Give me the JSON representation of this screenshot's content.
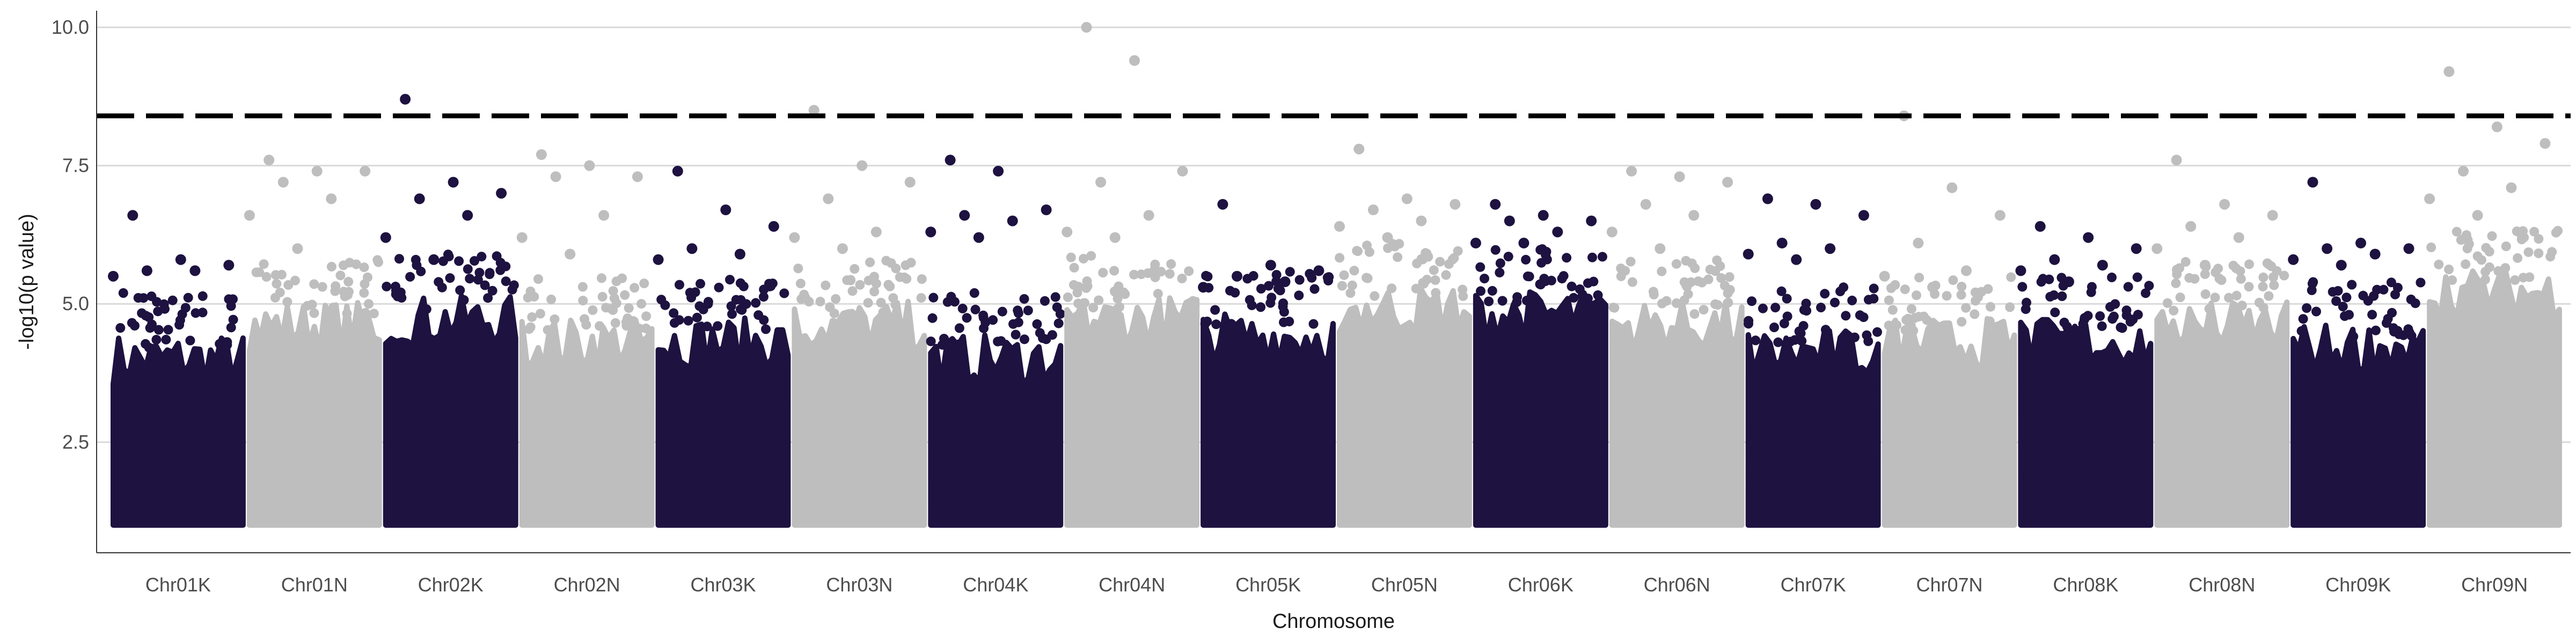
{
  "chart_data": {
    "type": "scatter",
    "title": "",
    "xlabel": "Chromosome",
    "ylabel": "-log10(p value)",
    "ylim": [
      0.5,
      10.3
    ],
    "yticks": [
      2.5,
      5.0,
      7.5,
      10.0
    ],
    "ytick_labels": [
      "2.5",
      "5.0",
      "7.5",
      "10.0"
    ],
    "grid": "horizontal-major",
    "legend": "none",
    "threshold": {
      "value": 8.4,
      "style": "dashed",
      "color": "#000000"
    },
    "colors": {
      "dark": "#1d1240",
      "light": "#bebebe",
      "grid": "#d9d9d9",
      "axis": "#333333"
    },
    "chromosomes": [
      {
        "name": "Chr01K",
        "color": "dark",
        "base_top": 4.0,
        "hits": [
          6.6,
          5.8,
          5.7,
          5.6,
          5.6,
          5.5
        ]
      },
      {
        "name": "Chr01N",
        "color": "light",
        "base_top": 4.6,
        "hits": [
          7.6,
          7.4,
          7.4,
          7.2,
          6.9,
          6.6,
          6.0
        ]
      },
      {
        "name": "Chr02K",
        "color": "dark",
        "base_top": 4.7,
        "hits": [
          8.7,
          7.2,
          7.0,
          6.9,
          6.6,
          6.2,
          5.8
        ]
      },
      {
        "name": "Chr02N",
        "color": "light",
        "base_top": 4.3,
        "hits": [
          7.7,
          7.5,
          7.3,
          7.3,
          6.6,
          6.2,
          5.9
        ]
      },
      {
        "name": "Chr03K",
        "color": "dark",
        "base_top": 4.3,
        "hits": [
          7.4,
          6.7,
          6.4,
          6.0,
          5.9,
          5.8
        ]
      },
      {
        "name": "Chr03N",
        "color": "light",
        "base_top": 4.6,
        "hits": [
          8.5,
          7.5,
          7.2,
          6.9,
          6.3,
          6.2,
          6.0
        ]
      },
      {
        "name": "Chr04K",
        "color": "dark",
        "base_top": 4.0,
        "hits": [
          7.6,
          7.4,
          6.7,
          6.6,
          6.5,
          6.3,
          6.2
        ]
      },
      {
        "name": "Chr04N",
        "color": "light",
        "base_top": 4.7,
        "hits": [
          10.0,
          9.4,
          7.4,
          7.2,
          6.6,
          6.3,
          6.2
        ]
      },
      {
        "name": "Chr05K",
        "color": "dark",
        "base_top": 4.4,
        "hits": [
          6.8,
          5.7,
          5.6,
          5.5,
          5.4,
          5.3
        ]
      },
      {
        "name": "Chr05N",
        "color": "light",
        "base_top": 4.9,
        "hits": [
          7.8,
          6.9,
          6.8,
          6.7,
          6.5,
          6.4,
          6.2
        ]
      },
      {
        "name": "Chr06K",
        "color": "dark",
        "base_top": 4.8,
        "hits": [
          6.8,
          6.6,
          6.5,
          6.5,
          6.3,
          6.1,
          6.1
        ]
      },
      {
        "name": "Chr06N",
        "color": "light",
        "base_top": 4.6,
        "hits": [
          7.4,
          7.3,
          7.2,
          6.8,
          6.6,
          6.3,
          6.0
        ]
      },
      {
        "name": "Chr07K",
        "color": "dark",
        "base_top": 4.1,
        "hits": [
          6.9,
          6.8,
          6.6,
          6.1,
          6.0,
          5.9,
          5.8
        ]
      },
      {
        "name": "Chr07N",
        "color": "light",
        "base_top": 4.3,
        "hits": [
          8.4,
          7.1,
          6.6,
          6.1,
          5.6,
          5.5,
          5.3
        ]
      },
      {
        "name": "Chr08K",
        "color": "dark",
        "base_top": 4.3,
        "hits": [
          6.4,
          6.2,
          6.0,
          5.8,
          5.7,
          5.6,
          5.4
        ]
      },
      {
        "name": "Chr08N",
        "color": "light",
        "base_top": 4.6,
        "hits": [
          7.6,
          6.8,
          6.6,
          6.4,
          6.2,
          6.0,
          5.7
        ]
      },
      {
        "name": "Chr09K",
        "color": "dark",
        "base_top": 4.2,
        "hits": [
          7.2,
          6.1,
          6.0,
          6.0,
          5.9,
          5.8,
          5.7
        ]
      },
      {
        "name": "Chr09N",
        "color": "light",
        "base_top": 5.2,
        "hits": [
          9.2,
          8.2,
          7.9,
          7.4,
          7.1,
          6.9,
          6.6
        ]
      }
    ]
  }
}
